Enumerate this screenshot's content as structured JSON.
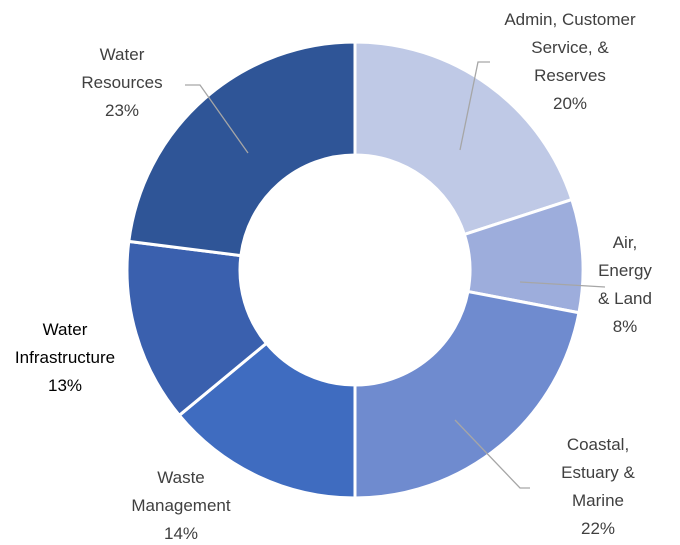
{
  "chart_data": {
    "type": "donut",
    "categories": [
      "Admin, Customer Service, & Reserves",
      "Air, Energy & Land",
      "Coastal, Estuary & Marine",
      "Waste Management",
      "Water Infrastructure",
      "Water Resources"
    ],
    "values": [
      20,
      8,
      22,
      14,
      13,
      23
    ],
    "value_labels": [
      "20%",
      "8%",
      "22%",
      "14%",
      "13%",
      "23%"
    ],
    "colors": [
      "#bfc9e6",
      "#9daddc",
      "#6f8bcf",
      "#3f6cc0",
      "#3a60ae",
      "#2f5597"
    ]
  }
}
